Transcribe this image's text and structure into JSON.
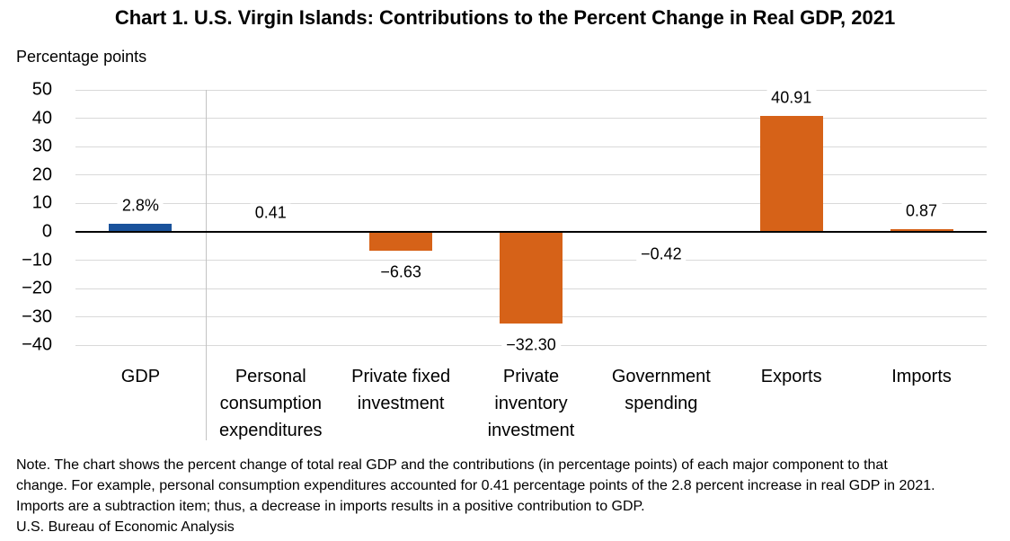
{
  "title": "Chart 1. U.S. Virgin Islands: Contributions to the Percent Change in Real GDP, 2021",
  "ylabel": "Percentage points",
  "note_text": "Note. The chart shows the percent change of total real GDP and the contributions (in percentage points) of each major component to that\nchange. For example, personal consumption expenditures accounted for 0.41 percentage points of the 2.8 percent increase in real GDP in 2021.\nImports are a subtraction item; thus, a decrease in imports results in a positive contribution to GDP.",
  "source": "U.S. Bureau of Economic Analysis",
  "chart_data": {
    "type": "bar",
    "title": "Chart 1. U.S. Virgin Islands: Contributions to the Percent Change in Real GDP, 2021",
    "ylabel": "Percentage points",
    "ylim": [
      -40,
      50
    ],
    "ytick_step": 10,
    "yticks": [
      "50",
      "40",
      "30",
      "20",
      "10",
      "0",
      "−10",
      "−20",
      "−30",
      "−40"
    ],
    "grid": true,
    "legend": "none",
    "categories": [
      "GDP",
      "Personal consumption expenditures",
      "Private fixed investment",
      "Private inventory investment",
      "Government spending",
      "Exports",
      "Imports"
    ],
    "category_lines": [
      [
        "GDP"
      ],
      [
        "Personal",
        "consumption",
        "expenditures"
      ],
      [
        "Private fixed",
        "investment"
      ],
      [
        "Private",
        "inventory",
        "investment"
      ],
      [
        "Government",
        "spending"
      ],
      [
        "Exports"
      ],
      [
        "Imports"
      ]
    ],
    "values": [
      2.8,
      0.41,
      -6.63,
      -32.3,
      -0.42,
      40.91,
      0.87
    ],
    "data_labels": [
      "2.8%",
      "0.41",
      "−6.63",
      "−32.30",
      "−0.42",
      "40.91",
      "0.87"
    ],
    "bar_colors": [
      "#1A529B",
      "#D66218",
      "#D66218",
      "#D66218",
      "#D66218",
      "#D66218",
      "#D66218"
    ],
    "colors": {
      "gdp_bar": "#1A529B",
      "component_bar": "#D66218",
      "gridline": "#D9D9D9",
      "zero_line": "#000000",
      "divider": "#C3C3C3",
      "text": "#000000"
    },
    "divider_after_category_index": 0
  }
}
